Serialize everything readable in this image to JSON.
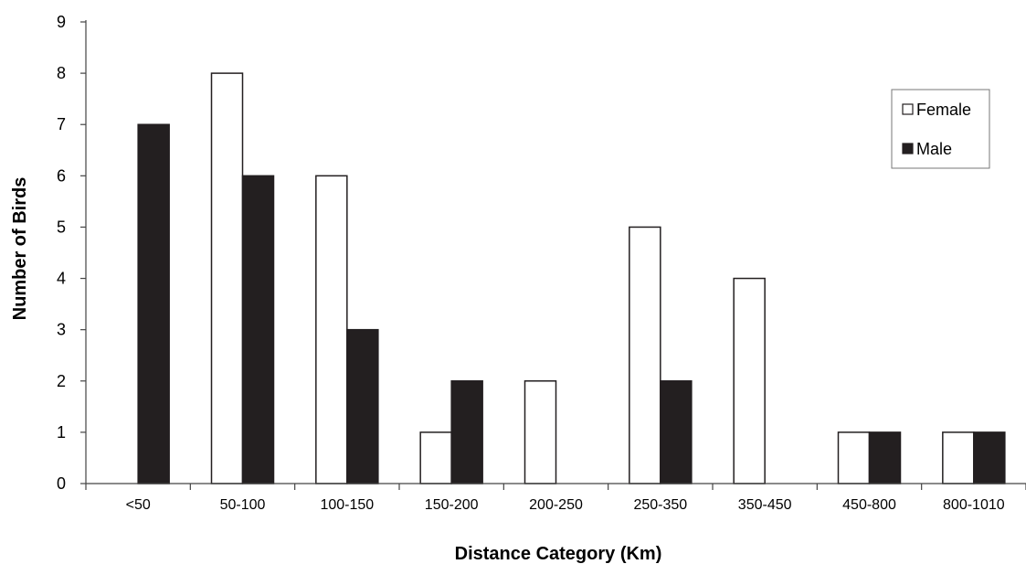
{
  "chart_data": {
    "type": "bar",
    "title": "",
    "xlabel": "Distance Category (Km)",
    "ylabel": "Number of Birds",
    "ylim": [
      0,
      9
    ],
    "yticks": [
      "0",
      "1",
      "2",
      "3",
      "4",
      "5",
      "6",
      "7",
      "8",
      "9"
    ],
    "categories": [
      "<50",
      "50-100",
      "100-150",
      "150-200",
      "200-250",
      "250-350",
      "350-450",
      "450-800",
      "800-1010"
    ],
    "series": [
      {
        "name": "Female",
        "color": "#ffffff",
        "values": [
          0,
          8,
          6,
          1,
          2,
          5,
          4,
          1,
          1
        ]
      },
      {
        "name": "Male",
        "color": "#231f20",
        "values": [
          7,
          6,
          3,
          2,
          0,
          2,
          0,
          1,
          1
        ]
      }
    ],
    "grid": false,
    "legend_position": "top-right"
  }
}
